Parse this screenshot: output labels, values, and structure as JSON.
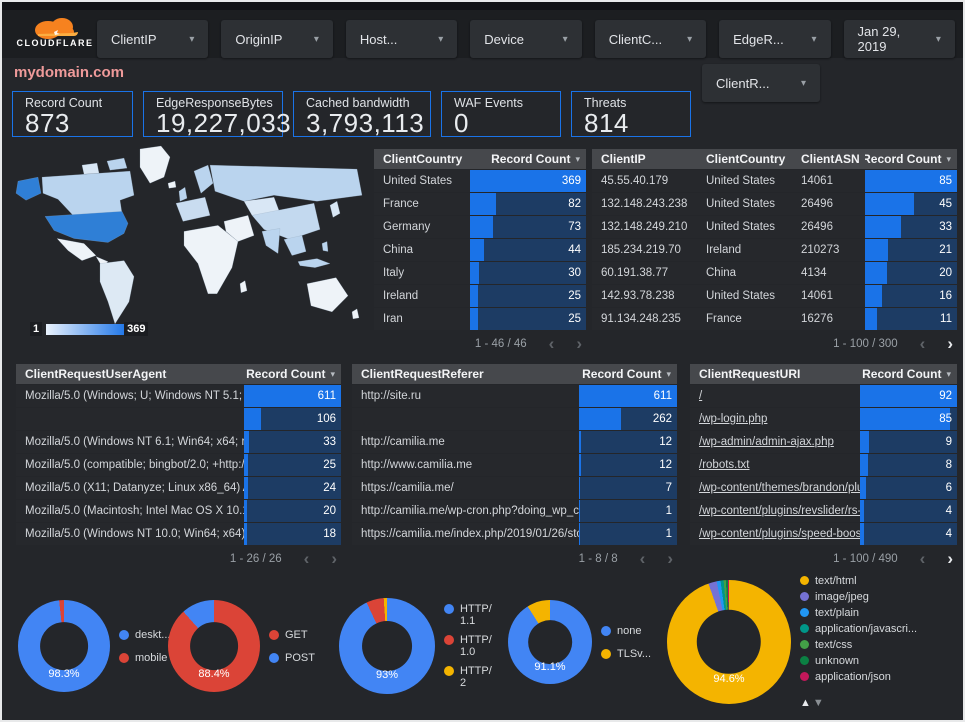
{
  "theme": {
    "bg": "#24262a",
    "topbar_bg": "#1c1e21",
    "chip_bg": "#2d3034",
    "accent_blue": "#1a73e8",
    "bar_track": "#1d3c64",
    "table_header_bg": "#46484c",
    "row_bg": "#26282c",
    "text": "#dfe2e6",
    "title_pink": "#ef9a9a",
    "map_high": "#2f7fd6",
    "map_mid": "#bad4ee",
    "map_low": "#eef3f8",
    "cloudflare_orange": "#f6821f",
    "cloudflare_orange_light": "#fbad41"
  },
  "header": {
    "brand": "CLOUDFLARE",
    "filters": [
      {
        "label": "ClientIP"
      },
      {
        "label": "OriginIP"
      },
      {
        "label": "Host..."
      },
      {
        "label": "Device"
      },
      {
        "label": "ClientC..."
      },
      {
        "label": "EdgeR..."
      }
    ],
    "date_filter": {
      "label": "Jan 29, 2019"
    },
    "extra_filter": {
      "label": "ClientR..."
    },
    "title": "mydomain.com"
  },
  "scorecards": [
    {
      "label": "Record Count",
      "value": "873"
    },
    {
      "label": "EdgeResponseBytes",
      "value": "19,227,033"
    },
    {
      "label": "Cached bandwidth",
      "value": "3,793,113"
    },
    {
      "label": "WAF Events",
      "value": "0"
    },
    {
      "label": "Threats",
      "value": "814"
    }
  ],
  "map": {
    "legend_min": "1",
    "legend_max": "369"
  },
  "tables": {
    "country": {
      "columns": [
        "ClientCountry",
        "Record Count"
      ],
      "rows": [
        {
          "cells": [
            "United States"
          ],
          "value": 369
        },
        {
          "cells": [
            "France"
          ],
          "value": 82
        },
        {
          "cells": [
            "Germany"
          ],
          "value": 73
        },
        {
          "cells": [
            "China"
          ],
          "value": 44
        },
        {
          "cells": [
            "Italy"
          ],
          "value": 30
        },
        {
          "cells": [
            "Ireland"
          ],
          "value": 25
        },
        {
          "cells": [
            "Iran"
          ],
          "value": 25
        }
      ],
      "max": 369,
      "pagination": "1 - 46 / 46",
      "prev_enabled": false,
      "next_enabled": false
    },
    "client_ip": {
      "columns": [
        "ClientIP",
        "ClientCountry",
        "ClientASN",
        "Record Count"
      ],
      "rows": [
        {
          "cells": [
            "45.55.40.179",
            "United States",
            "14061"
          ],
          "value": 85
        },
        {
          "cells": [
            "132.148.243.238",
            "United States",
            "26496"
          ],
          "value": 45
        },
        {
          "cells": [
            "132.148.249.210",
            "United States",
            "26496"
          ],
          "value": 33
        },
        {
          "cells": [
            "185.234.219.70",
            "Ireland",
            "210273"
          ],
          "value": 21
        },
        {
          "cells": [
            "60.191.38.77",
            "China",
            "4134"
          ],
          "value": 20
        },
        {
          "cells": [
            "142.93.78.238",
            "United States",
            "14061"
          ],
          "value": 16
        },
        {
          "cells": [
            "91.134.248.235",
            "France",
            "16276"
          ],
          "value": 11
        }
      ],
      "max": 85,
      "pagination": "1 - 100 / 300",
      "prev_enabled": false,
      "next_enabled": true
    },
    "user_agent": {
      "columns": [
        "ClientRequestUserAgent",
        "Record Count"
      ],
      "rows": [
        {
          "cells": [
            "Mozilla/5.0 (Windows; U; Windows NT 5.1; en-U..."
          ],
          "value": 611
        },
        {
          "cells": [
            ""
          ],
          "value": 106
        },
        {
          "cells": [
            "Mozilla/5.0 (Windows NT 6.1; Win64; x64; rv:64..."
          ],
          "value": 33
        },
        {
          "cells": [
            "Mozilla/5.0 (compatible; bingbot/2.0; +http://w..."
          ],
          "value": 25
        },
        {
          "cells": [
            "Mozilla/5.0 (X11; Datanyze; Linux x86_64) Appl..."
          ],
          "value": 24
        },
        {
          "cells": [
            "Mozilla/5.0 (Macintosh; Intel Mac OS X 10.11; r..."
          ],
          "value": 20
        },
        {
          "cells": [
            "Mozilla/5.0 (Windows NT 10.0; Win64; x64) App..."
          ],
          "value": 18
        }
      ],
      "max": 611,
      "pagination": "1 - 26 / 26",
      "prev_enabled": false,
      "next_enabled": false
    },
    "referer": {
      "columns": [
        "ClientRequestReferer",
        "Record Count"
      ],
      "rows": [
        {
          "cells": [
            "http://site.ru"
          ],
          "value": 611
        },
        {
          "cells": [
            ""
          ],
          "value": 262
        },
        {
          "cells": [
            "http://camilia.me"
          ],
          "value": 12
        },
        {
          "cells": [
            "http://www.camilia.me"
          ],
          "value": 12
        },
        {
          "cells": [
            "https://camilia.me/"
          ],
          "value": 7
        },
        {
          "cells": [
            "http://camilia.me/wp-cron.php?doing_wp_cron..."
          ],
          "value": 1
        },
        {
          "cells": [
            "https://camilia.me/index.php/2019/01/26/stor..."
          ],
          "value": 1
        }
      ],
      "max": 611,
      "pagination": "1 - 8 / 8",
      "prev_enabled": false,
      "next_enabled": false
    },
    "uri": {
      "columns": [
        "ClientRequestURI",
        "Record Count"
      ],
      "links": true,
      "rows": [
        {
          "cells": [
            "/"
          ],
          "value": 92
        },
        {
          "cells": [
            "/wp-login.php"
          ],
          "value": 85
        },
        {
          "cells": [
            "/wp-admin/admin-ajax.php"
          ],
          "value": 9
        },
        {
          "cells": [
            "/robots.txt"
          ],
          "value": 8
        },
        {
          "cells": [
            "/wp-content/themes/brandon/plu..."
          ],
          "value": 6
        },
        {
          "cells": [
            "/wp-content/plugins/revslider/rs-p..."
          ],
          "value": 4
        },
        {
          "cells": [
            "/wp-content/plugins/speed-booste..."
          ],
          "value": 4
        }
      ],
      "max": 92,
      "pagination": "1 - 100 / 490",
      "prev_enabled": false,
      "next_enabled": true
    }
  },
  "donuts": [
    {
      "name": "device-type",
      "center_label": "98.3%",
      "slices": [
        {
          "label": "deskt...",
          "value": 98.3,
          "color": "#4285f4"
        },
        {
          "label": "mobile",
          "value": 1.7,
          "color": "#db4437"
        }
      ]
    },
    {
      "name": "http-method",
      "center_label": "88.4%",
      "slices": [
        {
          "label": "GET",
          "value": 88.4,
          "color": "#db4437"
        },
        {
          "label": "POST",
          "value": 11.6,
          "color": "#4285f4"
        }
      ]
    },
    {
      "name": "http-version",
      "center_label": "93%",
      "slices": [
        {
          "label": "HTTP/1.1",
          "value": 93,
          "color": "#4285f4"
        },
        {
          "label": "HTTP/1.0",
          "value": 5.9,
          "color": "#db4437"
        },
        {
          "label": "HTTP/2",
          "value": 1.1,
          "color": "#f4b400"
        }
      ]
    },
    {
      "name": "tls-version",
      "center_label": "91.1%",
      "slices": [
        {
          "label": "none",
          "value": 91.1,
          "color": "#4285f4"
        },
        {
          "label": "TLSv...",
          "value": 8.9,
          "color": "#f4b400"
        }
      ]
    },
    {
      "name": "content-type",
      "center_label": "94.6%",
      "has_scroll_arrows": true,
      "arrow_up": "▲",
      "arrow_down": "▼",
      "slices": [
        {
          "label": "text/html",
          "value": 94.6,
          "color": "#f4b400"
        },
        {
          "label": "image/jpeg",
          "value": 2.2,
          "color": "#7572d5"
        },
        {
          "label": "text/plain",
          "value": 1.0,
          "color": "#2196f3"
        },
        {
          "label": "application/javascri...",
          "value": 0.8,
          "color": "#009688"
        },
        {
          "label": "text/css",
          "value": 0.6,
          "color": "#43a047"
        },
        {
          "label": "unknown",
          "value": 0.5,
          "color": "#0b8043"
        },
        {
          "label": "application/json",
          "value": 0.3,
          "color": "#c2185b"
        }
      ]
    }
  ]
}
